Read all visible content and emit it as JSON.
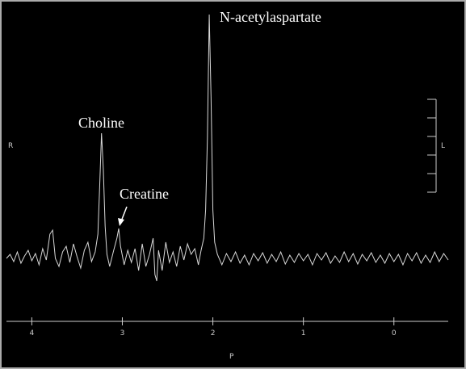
{
  "chart_data": {
    "type": "line",
    "annotations": [
      "Choline",
      "Creatine",
      "N-acetylaspartate"
    ],
    "x_label": "P",
    "left_label": "R",
    "right_label": "L",
    "xlim": [
      4.28,
      -0.6
    ],
    "xticks": [
      4,
      3,
      2,
      1,
      0
    ],
    "ylim": [
      -78,
      310
    ],
    "color": "#d8d8d8",
    "x": [
      4.28,
      4.24,
      4.2,
      4.16,
      4.12,
      4.08,
      4.04,
      4.0,
      3.96,
      3.92,
      3.88,
      3.84,
      3.8,
      3.77,
      3.74,
      3.7,
      3.66,
      3.62,
      3.58,
      3.54,
      3.5,
      3.46,
      3.42,
      3.38,
      3.34,
      3.3,
      3.27,
      3.25,
      3.23,
      3.21,
      3.19,
      3.17,
      3.14,
      3.1,
      3.06,
      3.04,
      3.02,
      2.98,
      2.94,
      2.9,
      2.86,
      2.82,
      2.78,
      2.74,
      2.7,
      2.66,
      2.64,
      2.62,
      2.6,
      2.56,
      2.52,
      2.48,
      2.44,
      2.4,
      2.36,
      2.32,
      2.28,
      2.24,
      2.2,
      2.16,
      2.13,
      2.1,
      2.08,
      2.06,
      2.04,
      2.02,
      2.0,
      1.98,
      1.95,
      1.9,
      1.85,
      1.8,
      1.75,
      1.7,
      1.65,
      1.6,
      1.55,
      1.5,
      1.45,
      1.4,
      1.35,
      1.3,
      1.25,
      1.2,
      1.15,
      1.1,
      1.05,
      1.0,
      0.95,
      0.9,
      0.85,
      0.8,
      0.75,
      0.7,
      0.65,
      0.6,
      0.55,
      0.5,
      0.45,
      0.4,
      0.35,
      0.3,
      0.25,
      0.2,
      0.15,
      0.1,
      0.05,
      0.0,
      -0.05,
      -0.1,
      -0.15,
      -0.2,
      -0.25,
      -0.3,
      -0.35,
      -0.4,
      -0.45,
      -0.5,
      -0.55,
      -0.6
    ],
    "values": [
      0,
      5,
      -4,
      8,
      -6,
      3,
      10,
      -3,
      6,
      -8,
      12,
      -2,
      30,
      35,
      0,
      -10,
      8,
      15,
      -5,
      18,
      2,
      -12,
      10,
      20,
      -4,
      8,
      30,
      90,
      155,
      110,
      40,
      5,
      -10,
      8,
      25,
      37,
      15,
      -8,
      10,
      -5,
      12,
      -15,
      18,
      -10,
      5,
      25,
      -20,
      -28,
      10,
      -15,
      20,
      -5,
      8,
      -10,
      15,
      -2,
      18,
      5,
      12,
      -8,
      10,
      25,
      60,
      150,
      302,
      200,
      60,
      20,
      5,
      -8,
      6,
      -4,
      8,
      -6,
      4,
      -8,
      6,
      -3,
      7,
      -6,
      5,
      -4,
      8,
      -7,
      4,
      -5,
      6,
      -3,
      5,
      -8,
      6,
      -2,
      7,
      -6,
      3,
      -5,
      8,
      -4,
      6,
      -7,
      5,
      -3,
      7,
      -5,
      4,
      -6,
      6,
      -4,
      5,
      -8,
      6,
      -3,
      7,
      -6,
      4,
      -5,
      8,
      -4,
      6,
      -2
    ]
  }
}
